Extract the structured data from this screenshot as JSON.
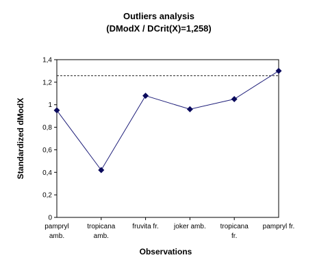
{
  "chart_data": {
    "type": "line",
    "title": "Outliers analysis",
    "subtitle": "(DModX / DCrit(X)=1,258)",
    "xlabel": "Observations",
    "ylabel": "Standardized dModX",
    "categories": [
      [
        "pampryl",
        "amb."
      ],
      [
        "tropicana",
        "amb."
      ],
      [
        "fruvita fr."
      ],
      [
        "joker amb."
      ],
      [
        "tropicana",
        "fr."
      ],
      [
        "pampryl fr."
      ]
    ],
    "values": [
      0.95,
      0.42,
      1.08,
      0.96,
      1.05,
      1.3
    ],
    "ylim": [
      0,
      1.4
    ],
    "yticks": [
      0,
      0.2,
      0.4,
      0.6,
      0.8,
      1.0,
      1.2,
      1.4
    ],
    "ytick_labels": [
      "0",
      "0,2",
      "0,4",
      "0,6",
      "0,8",
      "1",
      "1,2",
      "1,4"
    ],
    "threshold": 1.258,
    "series_color": "#1f1f7a",
    "marker_color": "#0a0a5c",
    "grid": false,
    "legend": "none"
  }
}
